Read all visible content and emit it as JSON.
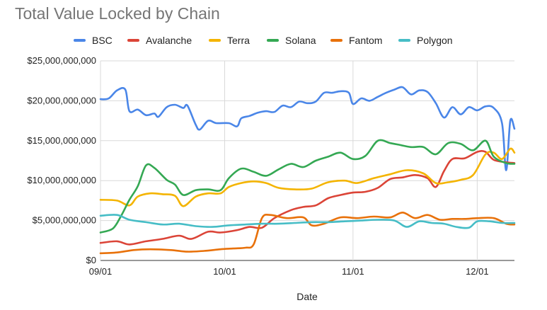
{
  "chart_data": {
    "type": "line",
    "title": "Total Value Locked by Chain",
    "xlabel": "Date",
    "ylabel": "",
    "x_range": [
      "2021-09-01",
      "2021-12-10"
    ],
    "ylim": [
      0,
      25000000000
    ],
    "y_ticks": [
      0,
      5000000000,
      10000000000,
      15000000000,
      20000000000,
      25000000000
    ],
    "y_tick_labels": [
      "$0",
      "$5,000,000,000",
      "$10,000,000,000",
      "$15,000,000,000",
      "$20,000,000,000",
      "$25,000,000,000"
    ],
    "x_ticks": [
      "2021-09-01",
      "2021-10-01",
      "2021-11-01",
      "2021-12-01"
    ],
    "x_tick_labels": [
      "09/01",
      "10/01",
      "11/01",
      "12/01"
    ],
    "grid": true,
    "legend_position": "top",
    "series": [
      {
        "name": "BSC",
        "color": "#4a86e8",
        "points": [
          [
            "2021-09-01",
            20200000000
          ],
          [
            "2021-09-03",
            20300000000
          ],
          [
            "2021-09-05",
            21300000000
          ],
          [
            "2021-09-07",
            21400000000
          ],
          [
            "2021-09-08",
            18700000000
          ],
          [
            "2021-09-10",
            18900000000
          ],
          [
            "2021-09-12",
            18200000000
          ],
          [
            "2021-09-14",
            18400000000
          ],
          [
            "2021-09-15",
            18000000000
          ],
          [
            "2021-09-17",
            19200000000
          ],
          [
            "2021-09-19",
            19500000000
          ],
          [
            "2021-09-21",
            19100000000
          ],
          [
            "2021-09-22",
            19400000000
          ],
          [
            "2021-09-24",
            17000000000
          ],
          [
            "2021-09-25",
            16400000000
          ],
          [
            "2021-09-27",
            17500000000
          ],
          [
            "2021-09-29",
            17200000000
          ],
          [
            "2021-10-02",
            17200000000
          ],
          [
            "2021-10-04",
            16800000000
          ],
          [
            "2021-10-05",
            17800000000
          ],
          [
            "2021-10-07",
            18100000000
          ],
          [
            "2021-10-09",
            18500000000
          ],
          [
            "2021-10-11",
            18700000000
          ],
          [
            "2021-10-13",
            18600000000
          ],
          [
            "2021-10-15",
            19400000000
          ],
          [
            "2021-10-17",
            19200000000
          ],
          [
            "2021-10-19",
            19900000000
          ],
          [
            "2021-10-21",
            19700000000
          ],
          [
            "2021-10-23",
            19900000000
          ],
          [
            "2021-10-25",
            21000000000
          ],
          [
            "2021-10-27",
            21000000000
          ],
          [
            "2021-10-29",
            21200000000
          ],
          [
            "2021-10-31",
            21000000000
          ],
          [
            "2021-11-01",
            19600000000
          ],
          [
            "2021-11-03",
            20300000000
          ],
          [
            "2021-11-05",
            20000000000
          ],
          [
            "2021-11-07",
            20500000000
          ],
          [
            "2021-11-09",
            21000000000
          ],
          [
            "2021-11-11",
            21400000000
          ],
          [
            "2021-11-13",
            21700000000
          ],
          [
            "2021-11-15",
            20800000000
          ],
          [
            "2021-11-17",
            21300000000
          ],
          [
            "2021-11-19",
            21100000000
          ],
          [
            "2021-11-21",
            19700000000
          ],
          [
            "2021-11-23",
            17900000000
          ],
          [
            "2021-11-25",
            19200000000
          ],
          [
            "2021-11-27",
            18300000000
          ],
          [
            "2021-11-29",
            19200000000
          ],
          [
            "2021-12-01",
            18800000000
          ],
          [
            "2021-12-03",
            19300000000
          ],
          [
            "2021-12-05",
            19100000000
          ],
          [
            "2021-12-07",
            17200000000
          ],
          [
            "2021-12-08",
            11300000000
          ],
          [
            "2021-12-09",
            17500000000
          ],
          [
            "2021-12-10",
            16500000000
          ]
        ]
      },
      {
        "name": "Avalanche",
        "color": "#db4437",
        "points": [
          [
            "2021-09-01",
            2200000000
          ],
          [
            "2021-09-05",
            2400000000
          ],
          [
            "2021-09-08",
            2000000000
          ],
          [
            "2021-09-12",
            2400000000
          ],
          [
            "2021-09-16",
            2700000000
          ],
          [
            "2021-09-20",
            3100000000
          ],
          [
            "2021-09-23",
            2700000000
          ],
          [
            "2021-09-27",
            3600000000
          ],
          [
            "2021-09-30",
            3500000000
          ],
          [
            "2021-10-04",
            3800000000
          ],
          [
            "2021-10-07",
            4200000000
          ],
          [
            "2021-10-10",
            4100000000
          ],
          [
            "2021-10-13",
            5300000000
          ],
          [
            "2021-10-17",
            6300000000
          ],
          [
            "2021-10-20",
            6700000000
          ],
          [
            "2021-10-23",
            6900000000
          ],
          [
            "2021-10-26",
            7800000000
          ],
          [
            "2021-10-29",
            8200000000
          ],
          [
            "2021-11-01",
            8500000000
          ],
          [
            "2021-11-04",
            8600000000
          ],
          [
            "2021-11-07",
            9100000000
          ],
          [
            "2021-11-10",
            10200000000
          ],
          [
            "2021-11-13",
            10400000000
          ],
          [
            "2021-11-16",
            10700000000
          ],
          [
            "2021-11-19",
            10300000000
          ],
          [
            "2021-11-21",
            9200000000
          ],
          [
            "2021-11-23",
            11200000000
          ],
          [
            "2021-11-25",
            12700000000
          ],
          [
            "2021-11-28",
            12800000000
          ],
          [
            "2021-12-01",
            13600000000
          ],
          [
            "2021-12-03",
            13600000000
          ],
          [
            "2021-12-05",
            12600000000
          ],
          [
            "2021-12-08",
            12300000000
          ],
          [
            "2021-12-10",
            12200000000
          ]
        ]
      },
      {
        "name": "Terra",
        "color": "#f4b400",
        "points": [
          [
            "2021-09-01",
            7600000000
          ],
          [
            "2021-09-05",
            7500000000
          ],
          [
            "2021-09-08",
            6900000000
          ],
          [
            "2021-09-10",
            8000000000
          ],
          [
            "2021-09-13",
            8400000000
          ],
          [
            "2021-09-16",
            8300000000
          ],
          [
            "2021-09-19",
            8100000000
          ],
          [
            "2021-09-21",
            6800000000
          ],
          [
            "2021-09-24",
            8000000000
          ],
          [
            "2021-09-27",
            8400000000
          ],
          [
            "2021-09-30",
            8400000000
          ],
          [
            "2021-10-02",
            9200000000
          ],
          [
            "2021-10-05",
            9700000000
          ],
          [
            "2021-10-08",
            9900000000
          ],
          [
            "2021-10-11",
            9700000000
          ],
          [
            "2021-10-14",
            9100000000
          ],
          [
            "2021-10-18",
            8900000000
          ],
          [
            "2021-10-22",
            9000000000
          ],
          [
            "2021-10-26",
            9800000000
          ],
          [
            "2021-10-30",
            10000000000
          ],
          [
            "2021-11-02",
            9700000000
          ],
          [
            "2021-11-06",
            10300000000
          ],
          [
            "2021-11-10",
            10800000000
          ],
          [
            "2021-11-14",
            11300000000
          ],
          [
            "2021-11-18",
            10900000000
          ],
          [
            "2021-11-21",
            9700000000
          ],
          [
            "2021-11-24",
            9800000000
          ],
          [
            "2021-11-27",
            10100000000
          ],
          [
            "2021-11-30",
            10700000000
          ],
          [
            "2021-12-03",
            13300000000
          ],
          [
            "2021-12-05",
            13500000000
          ],
          [
            "2021-12-07",
            12700000000
          ],
          [
            "2021-12-09",
            14000000000
          ],
          [
            "2021-12-10",
            13500000000
          ]
        ]
      },
      {
        "name": "Solana",
        "color": "#34a853",
        "points": [
          [
            "2021-09-01",
            3500000000
          ],
          [
            "2021-09-04",
            4000000000
          ],
          [
            "2021-09-06",
            5600000000
          ],
          [
            "2021-09-08",
            7600000000
          ],
          [
            "2021-09-10",
            9300000000
          ],
          [
            "2021-09-12",
            11900000000
          ],
          [
            "2021-09-14",
            11600000000
          ],
          [
            "2021-09-17",
            10100000000
          ],
          [
            "2021-09-19",
            9500000000
          ],
          [
            "2021-09-21",
            8200000000
          ],
          [
            "2021-09-24",
            8800000000
          ],
          [
            "2021-09-27",
            8900000000
          ],
          [
            "2021-09-30",
            8800000000
          ],
          [
            "2021-10-02",
            10300000000
          ],
          [
            "2021-10-05",
            11500000000
          ],
          [
            "2021-10-08",
            11100000000
          ],
          [
            "2021-10-11",
            10600000000
          ],
          [
            "2021-10-14",
            11400000000
          ],
          [
            "2021-10-17",
            12100000000
          ],
          [
            "2021-10-20",
            11700000000
          ],
          [
            "2021-10-23",
            12500000000
          ],
          [
            "2021-10-26",
            13000000000
          ],
          [
            "2021-10-29",
            13500000000
          ],
          [
            "2021-11-01",
            12700000000
          ],
          [
            "2021-11-04",
            13100000000
          ],
          [
            "2021-11-07",
            15000000000
          ],
          [
            "2021-11-10",
            14700000000
          ],
          [
            "2021-11-12",
            14500000000
          ],
          [
            "2021-11-15",
            14200000000
          ],
          [
            "2021-11-18",
            14200000000
          ],
          [
            "2021-11-21",
            13300000000
          ],
          [
            "2021-11-24",
            14700000000
          ],
          [
            "2021-11-27",
            14600000000
          ],
          [
            "2021-11-30",
            13800000000
          ],
          [
            "2021-12-03",
            15000000000
          ],
          [
            "2021-12-05",
            13000000000
          ],
          [
            "2021-12-08",
            12200000000
          ],
          [
            "2021-12-10",
            12100000000
          ]
        ]
      },
      {
        "name": "Fantom",
        "color": "#e8710a",
        "points": [
          [
            "2021-09-01",
            900000000
          ],
          [
            "2021-09-05",
            1000000000
          ],
          [
            "2021-09-09",
            1300000000
          ],
          [
            "2021-09-13",
            1400000000
          ],
          [
            "2021-09-18",
            1300000000
          ],
          [
            "2021-09-22",
            1100000000
          ],
          [
            "2021-09-26",
            1200000000
          ],
          [
            "2021-09-30",
            1400000000
          ],
          [
            "2021-10-03",
            1500000000
          ],
          [
            "2021-10-06",
            1600000000
          ],
          [
            "2021-10-08",
            2000000000
          ],
          [
            "2021-10-10",
            5300000000
          ],
          [
            "2021-10-12",
            5700000000
          ],
          [
            "2021-10-16",
            5300000000
          ],
          [
            "2021-10-20",
            5400000000
          ],
          [
            "2021-10-22",
            4400000000
          ],
          [
            "2021-10-25",
            4600000000
          ],
          [
            "2021-10-29",
            5400000000
          ],
          [
            "2021-11-02",
            5300000000
          ],
          [
            "2021-11-06",
            5500000000
          ],
          [
            "2021-11-10",
            5400000000
          ],
          [
            "2021-11-13",
            6000000000
          ],
          [
            "2021-11-16",
            5300000000
          ],
          [
            "2021-11-19",
            5700000000
          ],
          [
            "2021-11-22",
            5100000000
          ],
          [
            "2021-11-25",
            5200000000
          ],
          [
            "2021-11-28",
            5200000000
          ],
          [
            "2021-12-01",
            5300000000
          ],
          [
            "2021-12-05",
            5300000000
          ],
          [
            "2021-12-08",
            4600000000
          ],
          [
            "2021-12-10",
            4500000000
          ]
        ]
      },
      {
        "name": "Polygon",
        "color": "#46bdc6",
        "points": [
          [
            "2021-09-01",
            5600000000
          ],
          [
            "2021-09-05",
            5700000000
          ],
          [
            "2021-09-08",
            5100000000
          ],
          [
            "2021-09-12",
            4800000000
          ],
          [
            "2021-09-16",
            4500000000
          ],
          [
            "2021-09-20",
            4600000000
          ],
          [
            "2021-09-24",
            4300000000
          ],
          [
            "2021-09-28",
            4200000000
          ],
          [
            "2021-10-02",
            4400000000
          ],
          [
            "2021-10-06",
            4500000000
          ],
          [
            "2021-10-10",
            4600000000
          ],
          [
            "2021-10-14",
            4600000000
          ],
          [
            "2021-10-18",
            4700000000
          ],
          [
            "2021-10-22",
            4800000000
          ],
          [
            "2021-10-26",
            4800000000
          ],
          [
            "2021-10-30",
            4900000000
          ],
          [
            "2021-11-03",
            5000000000
          ],
          [
            "2021-11-07",
            5100000000
          ],
          [
            "2021-11-11",
            5000000000
          ],
          [
            "2021-11-14",
            4200000000
          ],
          [
            "2021-11-17",
            4900000000
          ],
          [
            "2021-11-20",
            4700000000
          ],
          [
            "2021-11-23",
            4600000000
          ],
          [
            "2021-11-26",
            4200000000
          ],
          [
            "2021-11-29",
            4100000000
          ],
          [
            "2021-12-01",
            4900000000
          ],
          [
            "2021-12-04",
            4900000000
          ],
          [
            "2021-12-07",
            4700000000
          ],
          [
            "2021-12-10",
            4700000000
          ]
        ]
      }
    ]
  }
}
